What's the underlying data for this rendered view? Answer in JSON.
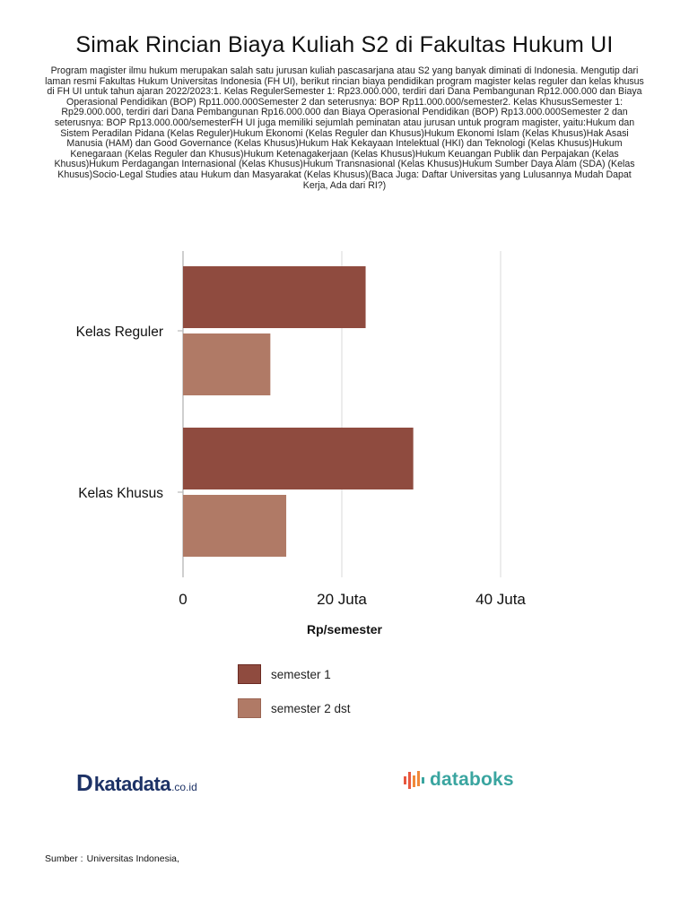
{
  "title": "Simak Rincian Biaya Kuliah S2 di Fakultas Hukum UI",
  "description": "Program magister ilmu hukum merupakan salah satu jurusan kuliah pascasarjana atau S2 yang banyak diminati di Indonesia. Mengutip dari laman resmi Fakultas Hukum Universitas Indonesia (FH UI), berikut rincian biaya pendidikan program magister kelas reguler dan kelas khusus di FH UI untuk tahun ajaran 2022/2023:1. Kelas RegulerSemester 1: Rp23.000.000, terdiri dari Dana Pembangunan Rp12.000.000 dan Biaya Operasional Pendidikan (BOP) Rp11.000.000Semester 2 dan seterusnya: BOP Rp11.000.000/semester2. Kelas KhususSemester 1: Rp29.000.000, terdiri dari Dana Pembangunan Rp16.000.000 dan Biaya Operasional Pendidikan (BOP) Rp13.000.000Semester 2 dan seterusnya: BOP Rp13.000.000/semesterFH UI juga memiliki sejumlah peminatan atau jurusan untuk program magister, yaitu:Hukum dan Sistem Peradilan Pidana (Kelas Reguler)Hukum Ekonomi (Kelas Reguler dan Khusus)Hukum Ekonomi Islam (Kelas Khusus)Hak Asasi Manusia (HAM) dan Good Governance (Kelas Khusus)Hukum Hak Kekayaan Intelektual (HKI) dan Teknologi (Kelas Khusus)Hukum Kenegaraan (Kelas Reguler dan Khusus)Hukum Ketenagakerjaan (Kelas Khusus)Hukum Keuangan Publik dan Perpajakan (Kelas Khusus)Hukum Perdagangan Internasional (Kelas Khusus)Hukum Transnasional (Kelas Khusus)Hukum Sumber Daya Alam (SDA) (Kelas Khusus)Socio-Legal Studies atau Hukum dan Masyarakat (Kelas Khusus)(Baca Juga: Daftar Universitas yang Lulusannya Mudah Dapat Kerja, Ada dari RI?)",
  "chart_data": {
    "type": "bar",
    "orientation": "horizontal",
    "categories": [
      "Kelas Reguler",
      "Kelas Khusus"
    ],
    "series": [
      {
        "name": "semester 1",
        "values": [
          23000000,
          29000000
        ],
        "color": "#8f4b3f"
      },
      {
        "name": "semester 2 dst",
        "values": [
          11000000,
          13000000
        ],
        "color": "#b07a66"
      }
    ],
    "xlabel": "Rp/semester",
    "ylabel": "",
    "xlim": [
      0,
      45000000
    ],
    "xticks": [
      {
        "value": 0,
        "label": "0"
      },
      {
        "value": 20000000,
        "label": "20 Juta"
      },
      {
        "value": 40000000,
        "label": "40 Juta"
      }
    ],
    "grid": true,
    "legend_position": "bottom"
  },
  "logos": {
    "katadata_mark": "D",
    "katadata_name": "katadata",
    "katadata_suffix": ".co.id",
    "databoks_name": "databoks",
    "databoks_icon": "databoks-bars-icon"
  },
  "source": {
    "label": "Sumber :",
    "value": "Universitas Indonesia,"
  },
  "colors": {
    "series1": "#8f4b3f",
    "series2": "#b07a66",
    "grid": "#e0e0e0",
    "katadata": "#1d3266",
    "databoks": "#3aa5a0"
  }
}
